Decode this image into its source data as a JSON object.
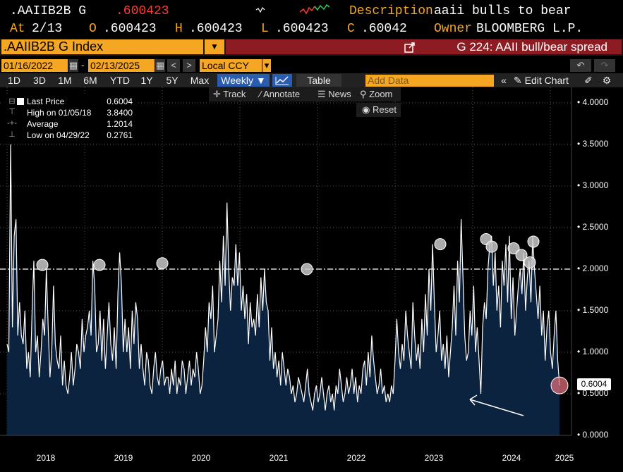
{
  "header": {
    "ticker": ".AAIIB2B G",
    "last_price": ".600423",
    "desc_label": "Description",
    "description": "aaii bulls to bear",
    "at_label": "At",
    "at_date": "2/13",
    "o_label": "O",
    "open": ".600423",
    "h_label": "H",
    "high": ".600423",
    "l_label": "L",
    "low": ".600423",
    "c_label": "C",
    "close": ".60042",
    "owner_label": "Owner",
    "owner": "BLOOMBERG L.P."
  },
  "security": {
    "name": ".AAIIB2B G Index",
    "function_title": "G 224: AAII bull/bear spread"
  },
  "daterange": {
    "start": "01/16/2022",
    "end": "02/13/2025",
    "currency": "Local CCY"
  },
  "periods": [
    "1D",
    "3D",
    "1M",
    "6M",
    "YTD",
    "1Y",
    "5Y",
    "Max"
  ],
  "toolbar": {
    "frequency": "Weekly",
    "table_label": "Table",
    "add_data_placeholder": "Add Data",
    "edit_chart_label": "Edit Chart"
  },
  "chart_tools": {
    "track": "Track",
    "annotate": "Annotate",
    "news": "News",
    "zoom": "Zoom",
    "reset": "Reset"
  },
  "legend": {
    "last_label": "Last Price",
    "last_value": "0.6004",
    "high_label": "High on 01/05/18",
    "high_value": "3.8400",
    "avg_label": "Average",
    "avg_value": "1.2014",
    "low_label": "Low on 04/29/22",
    "low_value": "0.2761"
  },
  "price_tag": "0.6004",
  "chart_data": {
    "type": "area",
    "title": "AAII bull/bear spread",
    "series": [
      {
        "name": ".AAIIB2B G Index",
        "values": [
          1.1,
          1.0,
          3.5,
          1.3,
          2.4,
          2.6,
          1.2,
          1.6,
          1.2,
          1.1,
          1.5,
          0.8,
          1.0,
          0.7,
          1.5,
          2.1,
          1.0,
          1.2,
          0.7,
          1.0,
          1.4,
          1.2,
          2.0,
          1.3,
          0.7,
          1.0,
          1.8,
          1.1,
          0.9,
          0.8,
          1.2,
          0.6,
          0.9,
          0.6,
          0.5,
          0.7,
          1.0,
          0.6,
          0.8,
          1.1,
          1.0,
          0.8,
          1.4,
          1.0,
          1.2,
          1.3,
          1.5,
          1.2,
          2.1,
          1.8,
          1.0,
          1.1,
          1.5,
          0.9,
          1.4,
          0.8,
          1.2,
          1.6,
          1.1,
          0.9,
          1.3,
          0.8,
          1.7,
          2.2,
          1.8,
          1.0,
          1.4,
          1.0,
          1.3,
          0.8,
          1.5,
          1.1,
          1.6,
          1.4,
          0.8,
          1.1,
          0.8,
          0.6,
          1.0,
          0.9,
          0.6,
          0.5,
          0.8,
          1.0,
          0.7,
          0.6,
          0.8,
          0.9,
          0.6,
          0.7,
          0.7,
          0.5,
          0.8,
          0.6,
          0.9,
          0.5,
          0.7,
          0.6,
          0.9,
          0.8,
          0.5,
          0.7,
          0.9,
          0.6,
          0.8,
          0.7,
          1.0,
          0.8,
          0.5,
          0.6,
          0.9,
          1.3,
          1.0,
          1.6,
          1.4,
          1.8,
          1.0,
          1.2,
          1.4,
          2.1,
          1.6,
          2.4,
          1.8,
          2.8,
          2.0,
          1.5,
          1.9,
          1.8,
          2.3,
          1.8,
          2.2,
          1.5,
          1.8,
          1.4,
          1.7,
          1.1,
          1.6,
          1.3,
          1.4,
          1.2,
          1.7,
          1.3,
          1.9,
          1.5,
          2.0,
          1.6,
          1.5,
          0.9,
          1.3,
          0.8,
          1.0,
          0.7,
          0.9,
          0.6,
          1.0,
          0.8,
          0.6,
          0.8,
          0.7,
          0.5,
          0.6,
          0.4,
          0.5,
          0.7,
          0.6,
          0.5,
          0.4,
          0.6,
          0.8,
          0.5,
          0.4,
          0.3,
          0.5,
          0.6,
          0.4,
          0.5,
          0.7,
          0.5,
          0.3,
          0.5,
          0.6,
          0.4,
          0.5,
          0.3,
          0.6,
          0.5,
          0.8,
          0.6,
          0.4,
          0.5,
          0.7,
          0.5,
          0.6,
          0.8,
          0.5,
          0.7,
          0.4,
          0.6,
          0.5,
          0.8,
          0.9,
          0.6,
          1.0,
          0.7,
          1.2,
          0.9,
          0.7,
          0.5,
          0.6,
          0.8,
          0.5,
          0.6,
          0.4,
          0.5,
          0.4,
          0.6,
          0.5,
          0.9,
          1.4,
          1.0,
          0.8,
          1.1,
          0.9,
          1.5,
          1.2,
          1.0,
          0.8,
          1.6,
          1.2,
          0.9,
          1.1,
          0.8,
          1.4,
          1.0,
          1.7,
          1.2,
          2.0,
          1.5,
          2.3,
          1.6,
          1.0,
          1.2,
          1.5,
          0.9,
          1.1,
          0.8,
          1.2,
          0.7,
          1.0,
          1.3,
          1.8,
          1.2,
          2.1,
          1.6,
          2.6,
          1.9,
          1.2,
          0.9,
          1.0,
          1.5,
          1.2,
          1.8,
          1.0,
          1.3,
          0.9,
          0.5,
          1.3,
          1.6,
          1.4,
          2.0,
          2.3,
          2.4,
          1.8,
          2.2,
          1.5,
          1.8,
          1.3,
          2.1,
          1.8,
          2.3,
          1.6,
          2.4,
          1.4,
          1.9,
          1.2,
          1.5,
          1.8,
          2.0,
          1.7,
          2.2,
          1.5,
          1.9,
          2.1,
          1.6,
          2.4,
          2.0,
          1.7,
          1.4,
          1.8,
          1.2,
          1.5,
          0.9,
          1.3,
          1.5,
          1.0,
          0.8,
          1.2,
          1.5,
          0.9,
          0.6
        ]
      }
    ],
    "highlighted_points": [
      2.05,
      2.05,
      2.07,
      2.0,
      2.3,
      2.36,
      2.27,
      2.25,
      2.17,
      2.08,
      2.33,
      0.6004
    ],
    "x_tick_labels": [
      "2018",
      "2019",
      "2020",
      "2021",
      "2022",
      "2023",
      "2024",
      "2025"
    ],
    "y_tick_labels": [
      "0.0000",
      "0.5000",
      "1.0000",
      "1.5000",
      "2.0000",
      "2.5000",
      "3.0000",
      "3.5000",
      "4.0000"
    ],
    "ylim": [
      0,
      4.2
    ],
    "reference_line": 2.0
  }
}
